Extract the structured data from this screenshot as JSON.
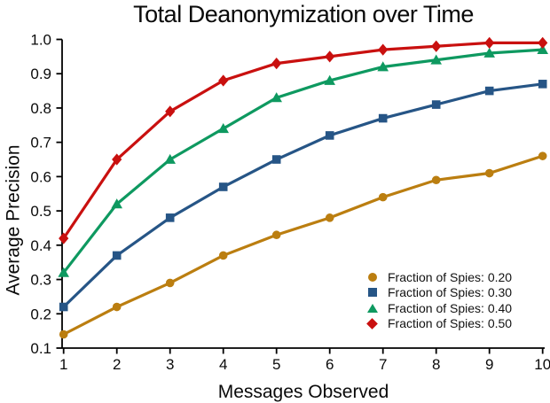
{
  "chart_data": {
    "type": "line",
    "title": "Total Deanonymization over Time",
    "xlabel": "Messages Observed",
    "ylabel": "Average Precision",
    "x": [
      1,
      2,
      3,
      4,
      5,
      6,
      7,
      8,
      9,
      10
    ],
    "x_tick_labels": [
      "1",
      "2",
      "3",
      "4",
      "5",
      "6",
      "7",
      "8",
      "9",
      "10"
    ],
    "y_tick_labels": [
      "0.1",
      "0.2",
      "0.3",
      "0.4",
      "0.5",
      "0.6",
      "0.7",
      "0.8",
      "0.9",
      "1.0"
    ],
    "xlim": [
      1,
      10
    ],
    "ylim": [
      0.1,
      1.0
    ],
    "grid": false,
    "legend_position": "lower right",
    "axis_color": "#000000",
    "series": [
      {
        "name": "Fraction of Spies: 0.20",
        "marker": "circle",
        "color": "#BB7E10",
        "values": [
          0.14,
          0.22,
          0.29,
          0.37,
          0.43,
          0.48,
          0.54,
          0.59,
          0.61,
          0.66
        ]
      },
      {
        "name": "Fraction of Spies: 0.30",
        "marker": "square",
        "color": "#265586",
        "values": [
          0.22,
          0.37,
          0.48,
          0.57,
          0.65,
          0.72,
          0.77,
          0.81,
          0.85,
          0.87
        ]
      },
      {
        "name": "Fraction of Spies: 0.40",
        "marker": "triangle",
        "color": "#0E9960",
        "values": [
          0.32,
          0.52,
          0.65,
          0.74,
          0.83,
          0.88,
          0.92,
          0.94,
          0.96,
          0.97
        ]
      },
      {
        "name": "Fraction of Spies: 0.50",
        "marker": "diamond",
        "color": "#C9100F",
        "values": [
          0.42,
          0.65,
          0.79,
          0.88,
          0.93,
          0.95,
          0.97,
          0.98,
          0.99,
          0.99
        ]
      }
    ]
  }
}
